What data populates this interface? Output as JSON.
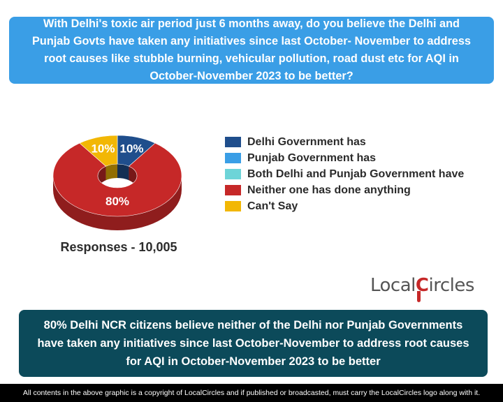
{
  "question": "With Delhi's toxic air period just 6 months away, do you believe the Delhi and Punjab Govts have taken any initiatives since last October- November to address root causes like stubble burning, vehicular pollution, road dust etc for AQI in October-November 2023 to be better?",
  "chart_data": {
    "type": "pie",
    "style": "donut-3d",
    "slices": [
      {
        "label": "Delhi Government has",
        "value": 10,
        "color": "#1f4e8c",
        "display": "10%"
      },
      {
        "label": "Punjab Government has",
        "value": 0,
        "color": "#3a9ee6",
        "display": ""
      },
      {
        "label": "Both Delhi and Punjab Government have",
        "value": 0,
        "color": "#6dd4d8",
        "display": ""
      },
      {
        "label": "Neither one has done anything",
        "value": 80,
        "color": "#c62828",
        "display": "80%"
      },
      {
        "label": "Can't Say",
        "value": 10,
        "color": "#f2b705",
        "display": "10%"
      }
    ],
    "legend_position": "right"
  },
  "responses_label": "Responses - 10,005",
  "brand": {
    "part1": "Local",
    "part2": "C",
    "part3": "ircles"
  },
  "summary": "80% Delhi NCR citizens believe neither of the Delhi nor Punjab Governments have taken any initiatives since last October-November to address root causes for AQI in October-November 2023 to be better",
  "footer": "All contents in the above graphic is a copyright of LocalCircles and if published or broadcasted, must carry the LocalCircles logo along with it."
}
